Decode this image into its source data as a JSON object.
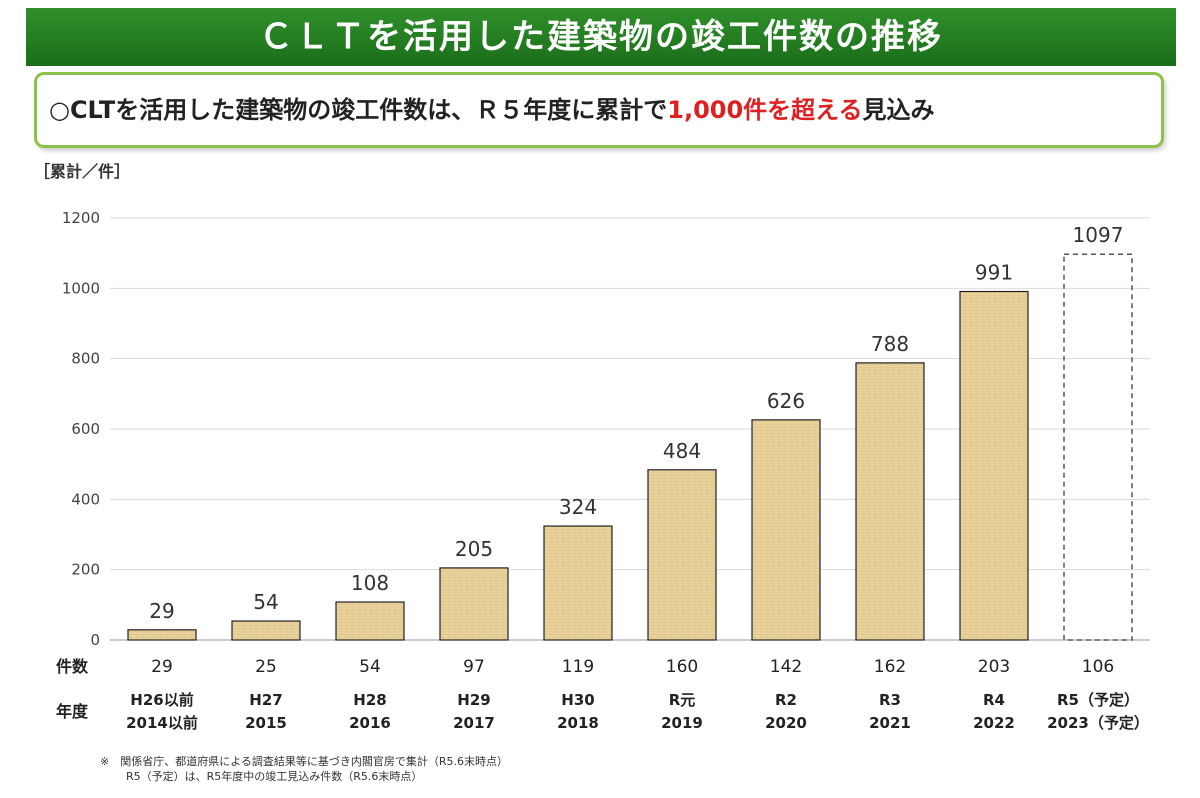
{
  "header": {
    "title": "ＣＬＴを活用した建築物の竣工件数の推移"
  },
  "summary": {
    "prefix": "○CLTを活用した建築物の竣工件数は、Ｒ５年度に累計で",
    "highlight": "1,000件を超える",
    "suffix": "見込み",
    "highlight_color": "#e02020"
  },
  "unit_label": "［累計／件］",
  "row_labels": {
    "count": "件数",
    "year": "年度"
  },
  "chart_data": {
    "type": "bar",
    "ylim": [
      0,
      1200
    ],
    "yticks": [
      0,
      200,
      400,
      600,
      800,
      1000,
      1200
    ],
    "grid": true,
    "categories": [
      {
        "era": "H26以前",
        "year": "2014以前"
      },
      {
        "era": "H27",
        "year": "2015"
      },
      {
        "era": "H28",
        "year": "2016"
      },
      {
        "era": "H29",
        "year": "2017"
      },
      {
        "era": "H30",
        "year": "2018"
      },
      {
        "era": "R元",
        "year": "2019"
      },
      {
        "era": "R2",
        "year": "2020"
      },
      {
        "era": "R3",
        "year": "2021"
      },
      {
        "era": "R4",
        "year": "2022"
      },
      {
        "era": "R5（予定）",
        "year": "2023（予定）"
      }
    ],
    "cumulative": [
      29,
      54,
      108,
      205,
      324,
      484,
      626,
      788,
      991,
      1097
    ],
    "annual": [
      29,
      25,
      54,
      97,
      119,
      160,
      142,
      162,
      203,
      106
    ],
    "projected": [
      false,
      false,
      false,
      false,
      false,
      false,
      false,
      false,
      false,
      true
    ],
    "bar_color": "#e6cf97",
    "projected_style": "dashed-outline"
  },
  "footnote": {
    "line1": "※　関係省庁、都道府県による調査結果等に基づき内閣官房で集計（R5.6末時点）",
    "line2": "R5（予定）は、R5年度中の竣工見込み件数（R5.6末時点）"
  }
}
